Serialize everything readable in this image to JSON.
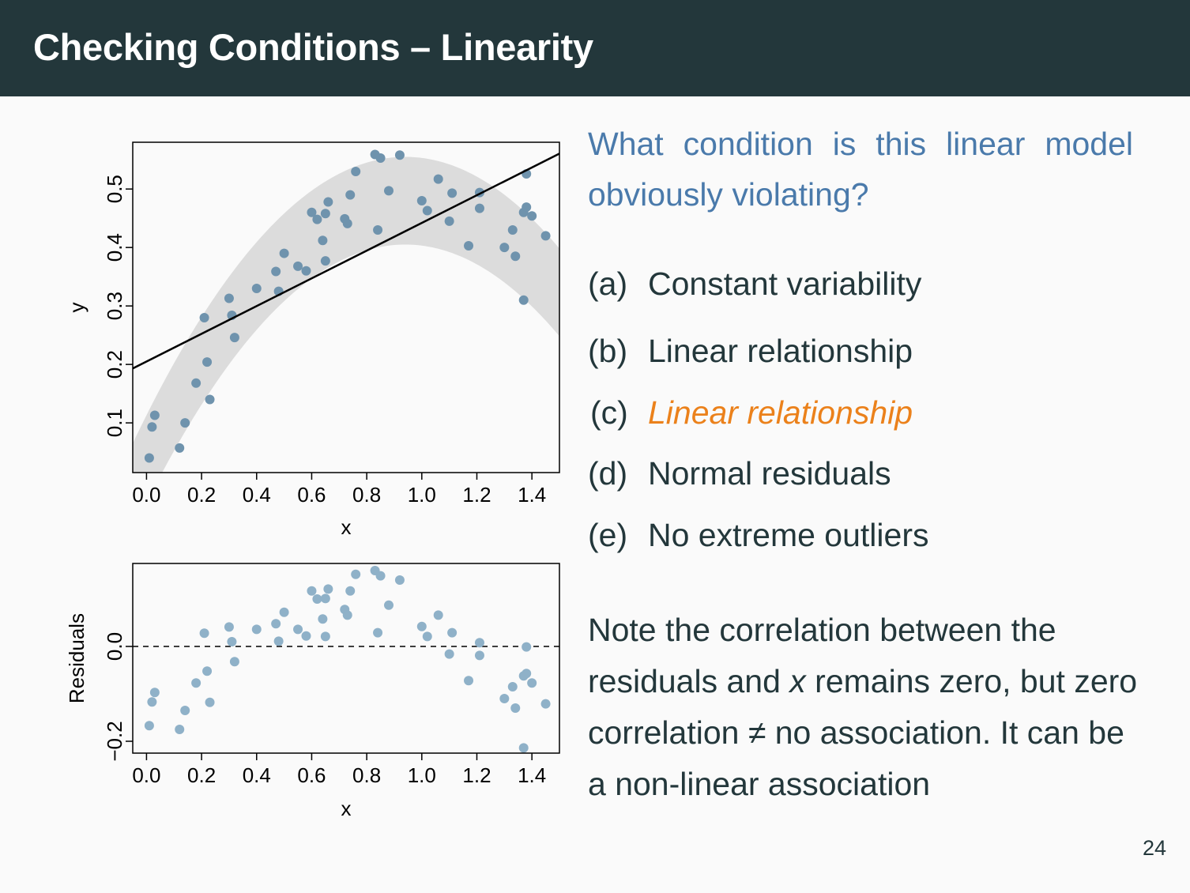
{
  "slide": {
    "title": "Checking Conditions – Linearity",
    "question": "What condition is this linear model obviously violating?",
    "options": [
      {
        "letter": "(a)",
        "text": "Constant variability",
        "highlight": false
      },
      {
        "letter": "(b)",
        "text": "Linear relationship",
        "highlight": false
      },
      {
        "letter": "(c)",
        "text": "Linear relationship",
        "highlight": true
      },
      {
        "letter": "(d)",
        "text": "Normal residuals",
        "highlight": false
      },
      {
        "letter": "(e)",
        "text": "No extreme outliers",
        "highlight": false
      }
    ],
    "note": {
      "part1": "Note the correlation between the residuals and ",
      "var": "x",
      "part2": " remains zero, but zero correlation ≠ no association. It can be a non-linear association"
    },
    "page_number": "24"
  },
  "colors": {
    "title_bar": "#23373b",
    "question": "#4a7aab",
    "highlight": "#eb811b",
    "point_top": "#6f93ad",
    "point_resid": "#8fb1c8",
    "band": "#dcdcdc"
  },
  "chart_data": [
    {
      "type": "scatter",
      "title": "",
      "xlabel": "x",
      "ylabel": "y",
      "xlim": [
        -0.05,
        1.5
      ],
      "ylim": [
        0.015,
        0.58
      ],
      "xticks": [
        "0.0",
        "0.2",
        "0.4",
        "0.6",
        "0.8",
        "1.0",
        "1.2",
        "1.4"
      ],
      "yticks": [
        "0.1",
        "0.2",
        "0.3",
        "0.4",
        "0.5"
      ],
      "fit_line": {
        "intercept": 0.205,
        "slope": 0.237
      },
      "band": "curved grey band around a downward parabola, peaking near x = 0.9",
      "points": [
        [
          0.01,
          0.04
        ],
        [
          0.02,
          0.093
        ],
        [
          0.03,
          0.113
        ],
        [
          0.12,
          0.057
        ],
        [
          0.14,
          0.1
        ],
        [
          0.18,
          0.168
        ],
        [
          0.21,
          0.28
        ],
        [
          0.22,
          0.204
        ],
        [
          0.23,
          0.14
        ],
        [
          0.3,
          0.313
        ],
        [
          0.31,
          0.284
        ],
        [
          0.32,
          0.246
        ],
        [
          0.4,
          0.33
        ],
        [
          0.47,
          0.359
        ],
        [
          0.48,
          0.325
        ],
        [
          0.5,
          0.39
        ],
        [
          0.55,
          0.368
        ],
        [
          0.58,
          0.36
        ],
        [
          0.6,
          0.46
        ],
        [
          0.62,
          0.448
        ],
        [
          0.64,
          0.412
        ],
        [
          0.65,
          0.377
        ],
        [
          0.65,
          0.458
        ],
        [
          0.66,
          0.478
        ],
        [
          0.72,
          0.449
        ],
        [
          0.73,
          0.441
        ],
        [
          0.74,
          0.49
        ],
        [
          0.76,
          0.53
        ],
        [
          0.83,
          0.559
        ],
        [
          0.84,
          0.43
        ],
        [
          0.85,
          0.553
        ],
        [
          0.88,
          0.497
        ],
        [
          0.92,
          0.558
        ],
        [
          1.0,
          0.48
        ],
        [
          1.02,
          0.463
        ],
        [
          1.06,
          0.517
        ],
        [
          1.1,
          0.445
        ],
        [
          1.11,
          0.493
        ],
        [
          1.17,
          0.403
        ],
        [
          1.21,
          0.494
        ],
        [
          1.21,
          0.467
        ],
        [
          1.3,
          0.4
        ],
        [
          1.33,
          0.43
        ],
        [
          1.34,
          0.385
        ],
        [
          1.37,
          0.46
        ],
        [
          1.37,
          0.31
        ],
        [
          1.38,
          0.469
        ],
        [
          1.38,
          0.526
        ],
        [
          1.4,
          0.454
        ],
        [
          1.45,
          0.42
        ]
      ]
    },
    {
      "type": "scatter",
      "title": "",
      "xlabel": "x",
      "ylabel": "Residuals",
      "xlim": [
        -0.05,
        1.5
      ],
      "ylim": [
        -0.225,
        0.175
      ],
      "xticks": [
        "0.0",
        "0.2",
        "0.4",
        "0.6",
        "0.8",
        "1.0",
        "1.2",
        "1.4"
      ],
      "yticks": [
        "−0.2",
        "0.0"
      ],
      "reference_line": 0.0,
      "points": [
        [
          0.01,
          -0.167
        ],
        [
          0.02,
          -0.117
        ],
        [
          0.03,
          -0.097
        ],
        [
          0.12,
          -0.175
        ],
        [
          0.14,
          -0.135
        ],
        [
          0.18,
          -0.077
        ],
        [
          0.21,
          0.028
        ],
        [
          0.22,
          -0.052
        ],
        [
          0.23,
          -0.118
        ],
        [
          0.3,
          0.041
        ],
        [
          0.31,
          0.01
        ],
        [
          0.32,
          -0.032
        ],
        [
          0.4,
          0.036
        ],
        [
          0.47,
          0.048
        ],
        [
          0.48,
          0.011
        ],
        [
          0.5,
          0.072
        ],
        [
          0.55,
          0.036
        ],
        [
          0.58,
          0.022
        ],
        [
          0.6,
          0.117
        ],
        [
          0.62,
          0.1
        ],
        [
          0.64,
          0.058
        ],
        [
          0.65,
          0.101
        ],
        [
          0.65,
          0.021
        ],
        [
          0.66,
          0.121
        ],
        [
          0.72,
          0.078
        ],
        [
          0.73,
          0.066
        ],
        [
          0.74,
          0.117
        ],
        [
          0.76,
          0.152
        ],
        [
          0.83,
          0.16
        ],
        [
          0.84,
          0.029
        ],
        [
          0.85,
          0.149
        ],
        [
          0.88,
          0.087
        ],
        [
          0.92,
          0.14
        ],
        [
          1.0,
          0.042
        ],
        [
          1.02,
          0.021
        ],
        [
          1.06,
          0.066
        ],
        [
          1.1,
          -0.016
        ],
        [
          1.11,
          0.029
        ],
        [
          1.17,
          -0.072
        ],
        [
          1.21,
          0.008
        ],
        [
          1.21,
          -0.019
        ],
        [
          1.3,
          -0.11
        ],
        [
          1.33,
          -0.085
        ],
        [
          1.34,
          -0.13
        ],
        [
          1.37,
          -0.062
        ],
        [
          1.37,
          -0.214
        ],
        [
          1.38,
          -0.057
        ],
        [
          1.38,
          -0.001
        ],
        [
          1.4,
          -0.077
        ],
        [
          1.45,
          -0.121
        ]
      ]
    }
  ]
}
